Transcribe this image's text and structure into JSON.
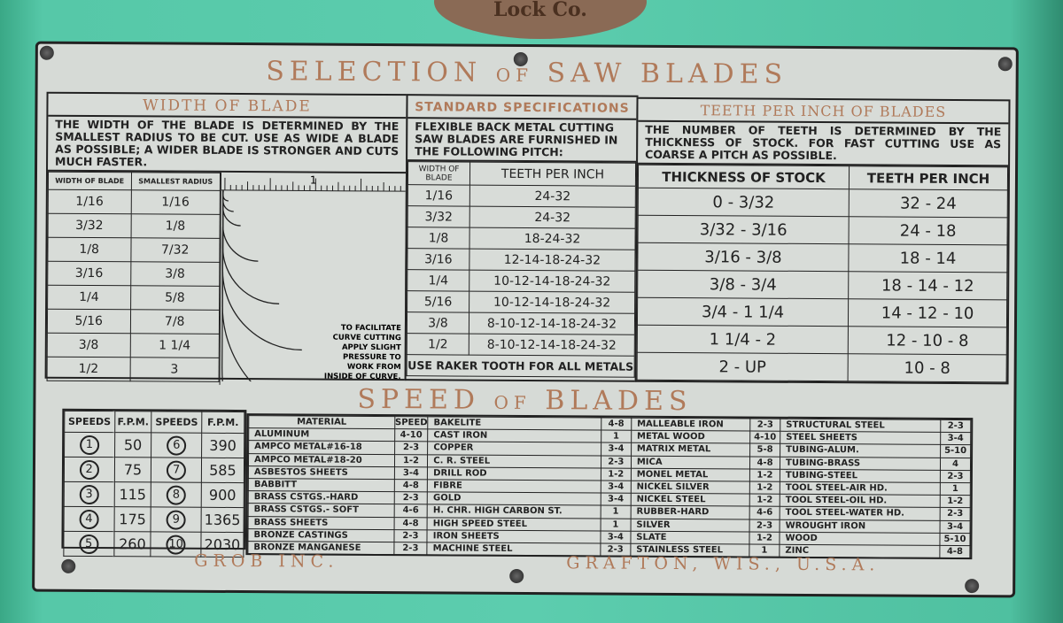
{
  "badge_text": "Lock Co.",
  "title": {
    "part1": "SELECTION",
    "of": "OF",
    "part2": "SAW BLADES"
  },
  "width_of_blade": {
    "heading": "WIDTH OF BLADE",
    "text": "THE WIDTH OF THE BLADE IS DETERMINED BY THE SMALLEST RADIUS TO BE CUT.  USE AS WIDE A BLADE AS POSSIBLE; A WIDER BLADE IS STRONGER AND CUTS MUCH FASTER.",
    "columns": [
      "WIDTH OF BLADE",
      "SMALLEST RADIUS"
    ],
    "ruler_label": "1",
    "rows": [
      [
        "1/16",
        "1/16"
      ],
      [
        "3/32",
        "1/8"
      ],
      [
        "1/8",
        "7/32"
      ],
      [
        "3/16",
        "3/8"
      ],
      [
        "1/4",
        "5/8"
      ],
      [
        "5/16",
        "7/8"
      ],
      [
        "3/8",
        "1 1/4"
      ],
      [
        "1/2",
        "3"
      ]
    ],
    "note": "TO FACILITATE CURVE CUTTING APPLY SLIGHT PRESSURE TO WORK FROM INSIDE OF CURVE."
  },
  "standard_specs": {
    "heading": "STANDARD SPECIFICATIONS",
    "text": "FLEXIBLE BACK METAL CUTTING SAW BLADES ARE FURNISHED IN THE FOLLOWING PITCH:",
    "columns": [
      "WIDTH OF BLADE",
      "TEETH PER INCH"
    ],
    "rows": [
      [
        "1/16",
        "24-32"
      ],
      [
        "3/32",
        "24-32"
      ],
      [
        "1/8",
        "18-24-32"
      ],
      [
        "3/16",
        "12-14-18-24-32"
      ],
      [
        "1/4",
        "10-12-14-18-24-32"
      ],
      [
        "5/16",
        "10-12-14-18-24-32"
      ],
      [
        "3/8",
        "8-10-12-14-18-24-32"
      ],
      [
        "1/2",
        "8-10-12-14-18-24-32"
      ]
    ],
    "footer": "USE RAKER TOOTH FOR ALL METALS"
  },
  "teeth_per_inch": {
    "heading": "TEETH PER INCH OF BLADES",
    "text": "THE NUMBER OF TEETH IS DETERMINED BY THE THICKNESS OF STOCK.  FOR FAST CUTTING USE AS COARSE A PITCH AS POSSIBLE.",
    "columns": [
      "THICKNESS OF STOCK",
      "TEETH PER INCH"
    ],
    "rows": [
      [
        "0 - 3/32",
        "32 - 24"
      ],
      [
        "3/32 - 3/16",
        "24 - 18"
      ],
      [
        "3/16 - 3/8",
        "18 - 14"
      ],
      [
        "3/8 - 3/4",
        "18 - 14 - 12"
      ],
      [
        "3/4 - 1 1/4",
        "14 - 12 - 10"
      ],
      [
        "1 1/4 - 2",
        "12 - 10 - 8"
      ],
      [
        "2 - UP",
        "10 - 8"
      ]
    ]
  },
  "speed_title": {
    "part1": "SPEED",
    "of": "OF",
    "part2": "BLADES"
  },
  "speeds": {
    "columns": [
      "SPEEDS",
      "F.P.M.",
      "SPEEDS",
      "F.P.M."
    ],
    "rows": [
      [
        "1",
        "50",
        "6",
        "390"
      ],
      [
        "2",
        "75",
        "7",
        "585"
      ],
      [
        "3",
        "115",
        "8",
        "900"
      ],
      [
        "4",
        "175",
        "9",
        "1365"
      ],
      [
        "5",
        "260",
        "10",
        "2030"
      ]
    ]
  },
  "materials": {
    "columns": [
      "MATERIAL",
      "SPEED"
    ],
    "col1": [
      [
        "ALUMINUM",
        "4-10"
      ],
      [
        "AMPCO METAL#16-18",
        "2-3"
      ],
      [
        "AMPCO METAL#18-20",
        "1-2"
      ],
      [
        "ASBESTOS SHEETS",
        "3-4"
      ],
      [
        "BABBITT",
        "4-8"
      ],
      [
        "BRASS CSTGS.-HARD",
        "2-3"
      ],
      [
        "BRASS CSTGS.- SOFT",
        "4-6"
      ],
      [
        "BRASS SHEETS",
        "4-8"
      ],
      [
        "BRONZE CASTINGS",
        "2-3"
      ],
      [
        "BRONZE MANGANESE",
        "2-3"
      ]
    ],
    "col2": [
      [
        "BAKELITE",
        "4-8"
      ],
      [
        "CAST IRON",
        "1"
      ],
      [
        "COPPER",
        "3-4"
      ],
      [
        "C. R. STEEL",
        "2-3"
      ],
      [
        "DRILL ROD",
        "1-2"
      ],
      [
        "FIBRE",
        "3-4"
      ],
      [
        "GOLD",
        "3-4"
      ],
      [
        "H. CHR. HIGH CARBON ST.",
        "1"
      ],
      [
        "HIGH SPEED STEEL",
        "1"
      ],
      [
        "IRON SHEETS",
        "3-4"
      ],
      [
        "MACHINE STEEL",
        "2-3"
      ]
    ],
    "col3": [
      [
        "MALLEABLE IRON",
        "2-3"
      ],
      [
        "METAL WOOD",
        "4-10"
      ],
      [
        "MATRIX METAL",
        "5-8"
      ],
      [
        "MICA",
        "4-8"
      ],
      [
        "MONEL METAL",
        "1-2"
      ],
      [
        "NICKEL SILVER",
        "1-2"
      ],
      [
        "NICKEL STEEL",
        "1-2"
      ],
      [
        "RUBBER-HARD",
        "4-6"
      ],
      [
        "SILVER",
        "2-3"
      ],
      [
        "SLATE",
        "1-2"
      ],
      [
        "STAINLESS STEEL",
        "1"
      ]
    ],
    "col4": [
      [
        "STRUCTURAL STEEL",
        "2-3"
      ],
      [
        "STEEL SHEETS",
        "3-4"
      ],
      [
        "TUBING-ALUM.",
        "5-10"
      ],
      [
        "TUBING-BRASS",
        "4"
      ],
      [
        "TUBING-STEEL",
        "2-3"
      ],
      [
        "TOOL STEEL-AIR HD.",
        "1"
      ],
      [
        "TOOL STEEL-OIL HD.",
        "1-2"
      ],
      [
        "TOOL STEEL-WATER HD.",
        "2-3"
      ],
      [
        "WROUGHT IRON",
        "3-4"
      ],
      [
        "WOOD",
        "5-10"
      ],
      [
        "ZINC",
        "4-8"
      ]
    ]
  },
  "footer": {
    "maker": "GROB INC.",
    "location": "GRAFTON, WIS., U.S.A."
  },
  "colors": {
    "machine": "#4dbf9f",
    "plate": "#d6dad6",
    "lettering": "#b07a5a",
    "ink": "#222222"
  }
}
